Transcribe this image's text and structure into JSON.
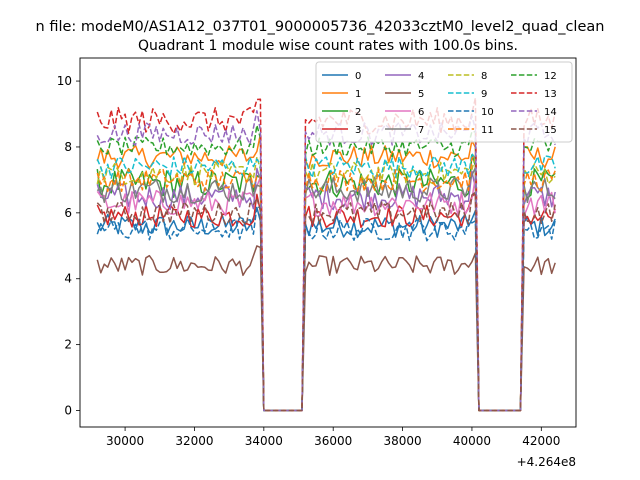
{
  "chart_data": {
    "type": "line",
    "suptitle": "n file: modeM0/AS1A12_037T01_9000005736_42033cztM0_level2_quad_clean",
    "title": "Quadrant 1 module wise count rates with 100.0s bins.",
    "xlabel": "",
    "ylabel": "",
    "x_offset_label": "+4.264e8",
    "xlim": [
      28700,
      43000
    ],
    "ylim": [
      -0.5,
      10.7
    ],
    "xticks": [
      30000,
      32000,
      34000,
      36000,
      38000,
      40000,
      42000
    ],
    "xtick_labels": [
      "30000",
      "32000",
      "34000",
      "36000",
      "38000",
      "40000",
      "42000"
    ],
    "yticks": [
      0,
      2,
      4,
      6,
      8,
      10
    ],
    "ytick_labels": [
      "0",
      "2",
      "4",
      "6",
      "8",
      "10"
    ],
    "grid": false,
    "legend_position": "top-right",
    "bin_seconds": 100,
    "segments": [
      [
        29200,
        33900
      ],
      [
        35200,
        40100
      ],
      [
        41500,
        42400
      ]
    ],
    "gaps": [
      [
        34000,
        35100
      ],
      [
        40200,
        41400
      ]
    ],
    "series": [
      {
        "name": "0",
        "color": "#1f77b4",
        "dash": "solid",
        "mean": 5.6,
        "amp": 0.35
      },
      {
        "name": "1",
        "color": "#ff7f0e",
        "dash": "solid",
        "mean": 7.7,
        "amp": 0.35
      },
      {
        "name": "2",
        "color": "#2ca02c",
        "dash": "solid",
        "mean": 6.9,
        "amp": 0.45
      },
      {
        "name": "3",
        "color": "#d62728",
        "dash": "solid",
        "mean": 5.9,
        "amp": 0.35
      },
      {
        "name": "4",
        "color": "#9467bd",
        "dash": "solid",
        "mean": 6.5,
        "amp": 0.4
      },
      {
        "name": "5",
        "color": "#8c564b",
        "dash": "solid",
        "mean": 4.4,
        "amp": 0.3
      },
      {
        "name": "6",
        "color": "#e377c2",
        "dash": "solid",
        "mean": 6.3,
        "amp": 0.4
      },
      {
        "name": "7",
        "color": "#7f7f7f",
        "dash": "solid",
        "mean": 6.7,
        "amp": 0.4
      },
      {
        "name": "8",
        "color": "#bcbd22",
        "dash": "dashed",
        "mean": 7.2,
        "amp": 0.35
      },
      {
        "name": "9",
        "color": "#17becf",
        "dash": "dashed",
        "mean": 7.4,
        "amp": 0.35
      },
      {
        "name": "10",
        "color": "#1f77b4",
        "dash": "dashed",
        "mean": 5.5,
        "amp": 0.35
      },
      {
        "name": "11",
        "color": "#ff7f0e",
        "dash": "dashed",
        "mean": 7.0,
        "amp": 0.35
      },
      {
        "name": "12",
        "color": "#2ca02c",
        "dash": "dashed",
        "mean": 8.0,
        "amp": 0.3
      },
      {
        "name": "13",
        "color": "#d62728",
        "dash": "dashed",
        "mean": 8.8,
        "amp": 0.4
      },
      {
        "name": "14",
        "color": "#9467bd",
        "dash": "dashed",
        "mean": 8.4,
        "amp": 0.35
      },
      {
        "name": "15",
        "color": "#8c564b",
        "dash": "dashed",
        "mean": 6.0,
        "amp": 0.35
      }
    ]
  }
}
